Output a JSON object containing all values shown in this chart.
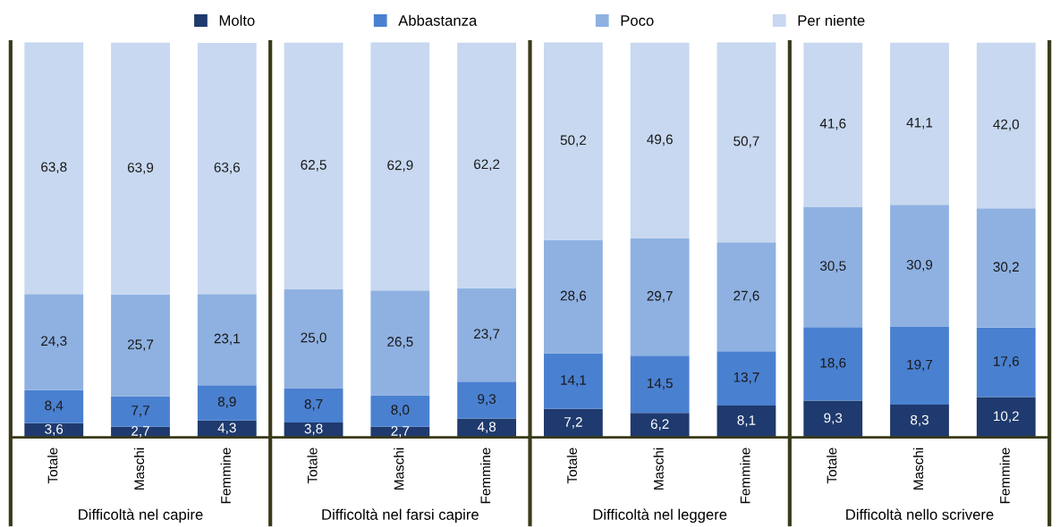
{
  "chart_data": {
    "type": "bar",
    "stacked": true,
    "legend": "top",
    "grid": false,
    "categories": [
      "Totale",
      "Maschi",
      "Femmine",
      "Totale",
      "Maschi",
      "Femmine",
      "Totale",
      "Maschi",
      "Femmine",
      "Totale",
      "Maschi",
      "Femmine"
    ],
    "series": [
      {
        "name": "Molto",
        "color": "#1f3a6e",
        "values": [
          3.6,
          2.7,
          4.3,
          3.8,
          2.7,
          4.8,
          7.2,
          6.2,
          8.1,
          9.3,
          8.3,
          10.2
        ],
        "value_labels": [
          "3,6",
          "2,7",
          "4,3",
          "3,8",
          "2,7",
          "4,8",
          "7,2",
          "6,2",
          "8,1",
          "9,3",
          "8,3",
          "10,2"
        ]
      },
      {
        "name": "Abbastanza",
        "color": "#4a80d0",
        "values": [
          8.4,
          7.7,
          8.9,
          8.7,
          8.0,
          9.3,
          14.1,
          14.5,
          13.7,
          18.6,
          19.7,
          17.6
        ],
        "value_labels": [
          "8,4",
          "7,7",
          "8,9",
          "8,7",
          "8,0",
          "9,3",
          "14,1",
          "14,5",
          "13,7",
          "18,6",
          "19,7",
          "17,6"
        ]
      },
      {
        "name": "Poco",
        "color": "#8eb1e2",
        "values": [
          24.3,
          25.7,
          23.1,
          25.0,
          26.5,
          23.7,
          28.6,
          29.7,
          27.6,
          30.5,
          30.9,
          30.2
        ],
        "value_labels": [
          "24,3",
          "25,7",
          "23,1",
          "25,0",
          "26,5",
          "23,7",
          "28,6",
          "29,7",
          "27,6",
          "30,5",
          "30,9",
          "30,2"
        ]
      },
      {
        "name": "Per niente",
        "color": "#c7d8f0",
        "values": [
          63.8,
          63.9,
          63.6,
          62.5,
          62.9,
          62.2,
          50.2,
          49.6,
          50.7,
          41.6,
          41.1,
          42.0
        ],
        "value_labels": [
          "63,8",
          "63,9",
          "63,6",
          "62,5",
          "62,9",
          "62,2",
          "50,2",
          "49,6",
          "50,7",
          "41,6",
          "41,1",
          "42,0"
        ]
      }
    ],
    "annotations": [
      "Difficoltà nel capire",
      "Difficoltà nel farsi capire",
      "Difficoltà nel leggere",
      "Difficoltà nello scrivere"
    ]
  }
}
